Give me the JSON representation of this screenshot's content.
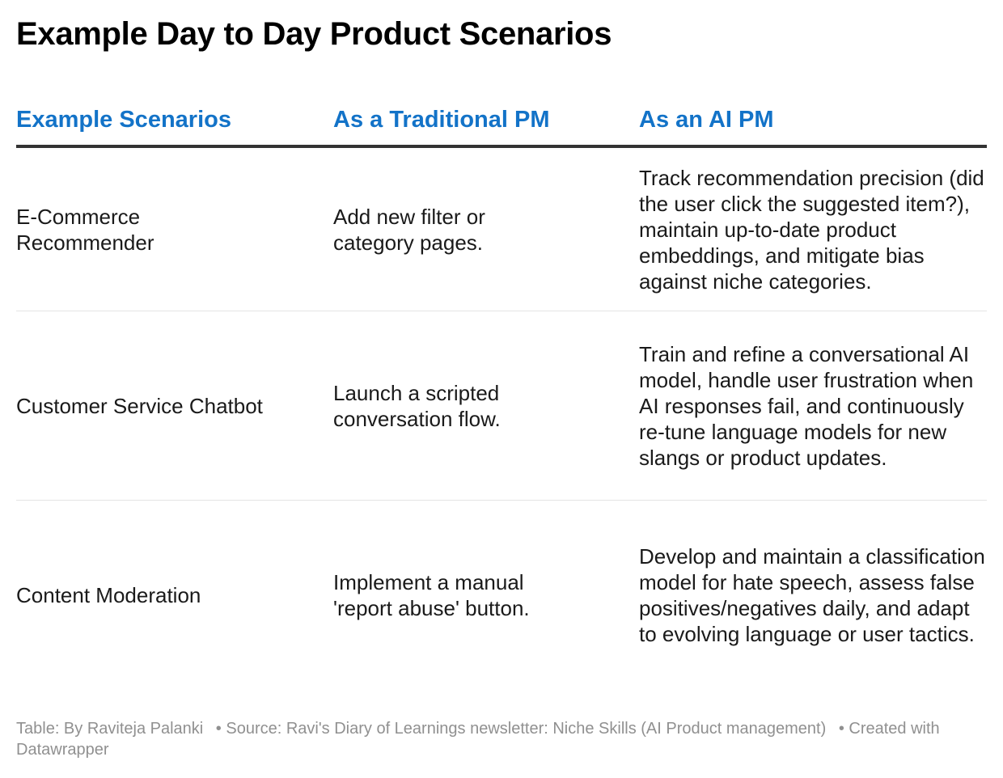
{
  "title": "Example Day to Day Product Scenarios",
  "colors": {
    "header_text": "#1373c8",
    "title_text": "#000000",
    "body_text": "#1a1a1a",
    "footer_text": "#909090",
    "header_rule": "#333333",
    "row_divider": "#e4e4e4"
  },
  "table": {
    "headers": [
      "Example Scenarios",
      "As a Traditional PM",
      "As an AI PM"
    ],
    "rows": [
      {
        "scenario": "E-Commerce Recommender",
        "traditional": "Add new filter or category pages.",
        "ai": "Track recommendation precision (did the user click the suggested item?), maintain up-to-date product embeddings, and mitigate bias against niche categories."
      },
      {
        "scenario": "Customer Service Chatbot",
        "traditional": "Launch a scripted conversation flow.",
        "ai": "Train and refine a conversational AI model, handle user frustration when AI responses fail, and continuously re-tune language models for new slangs or product updates."
      },
      {
        "scenario": "Content Moderation",
        "traditional": "Implement a manual 'report abuse' button.",
        "ai": "Develop and maintain a classification model for hate speech, assess false positives/negatives daily, and adapt to evolving language or user tactics."
      }
    ]
  },
  "footer": {
    "byline": "Table: By Raviteja Palanki",
    "source": "• Source: Ravi's Diary of Learnings newsletter: Niche Skills (AI Product management)",
    "credit": "• Created with Datawrapper"
  }
}
